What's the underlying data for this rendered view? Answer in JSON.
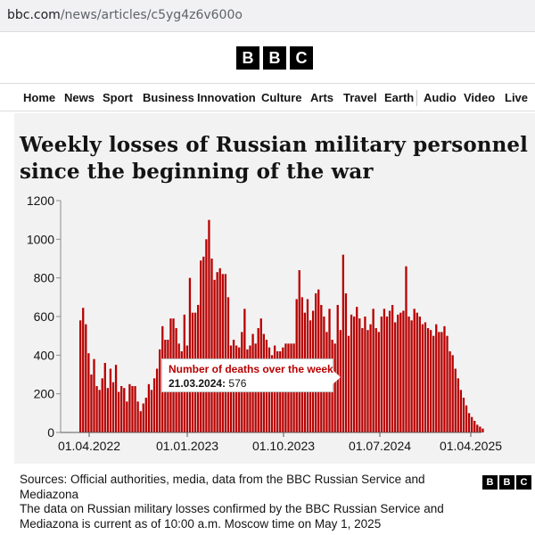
{
  "browser": {
    "url_host": "bbc.com",
    "url_path": "/news/articles/c5yg4z6v600o"
  },
  "header": {
    "logo_letters": [
      "B",
      "B",
      "C"
    ]
  },
  "nav": {
    "items": [
      "Home",
      "News",
      "Sport",
      "Business",
      "Innovation",
      "Culture",
      "Arts",
      "Travel",
      "Earth",
      "Audio",
      "Video",
      "Live"
    ]
  },
  "tooltip": {
    "title": "Number of deaths over the week",
    "date": "21.03.2024:",
    "value": "576"
  },
  "footer": {
    "sources": "Sources: Official authorities, media, data from the BBC Russian Service and Mediazona",
    "note": "The data on Russian military losses confirmed by the BBC Russian Service and Mediazona is current as of 10:00 a.m. Moscow time on May 1, 2025",
    "logo_letters": [
      "B",
      "B",
      "C"
    ]
  },
  "colors": {
    "bar": "#b80000",
    "accent": "#b80000"
  },
  "chart_data": {
    "type": "bar",
    "title": "Weekly losses of Russian military personnel since the beginning of the war",
    "xlabel": "",
    "ylabel": "",
    "ylim": [
      0,
      1200
    ],
    "yticks": [
      "0",
      "200",
      "400",
      "600",
      "800",
      "1000",
      "1200"
    ],
    "xticks": [
      "01.04.2022",
      "01.01.2023",
      "01.10.2023",
      "01.07.2024",
      "01.04.2025"
    ],
    "grid": false,
    "series": [
      {
        "values": [
          580,
          645,
          560,
          410,
          300,
          380,
          240,
          220,
          280,
          360,
          230,
          330,
          260,
          350,
          210,
          240,
          230,
          160,
          250,
          240,
          240,
          160,
          110,
          150,
          180,
          250,
          220,
          280,
          330,
          430,
          550,
          480,
          480,
          590,
          590,
          540,
          460,
          420,
          610,
          450,
          800,
          620,
          620,
          660,
          890,
          910,
          1000,
          1100,
          900,
          790,
          830,
          850,
          820,
          820,
          700,
          450,
          480,
          450,
          440,
          520,
          640,
          430,
          450,
          510,
          460,
          540,
          590,
          510,
          480,
          440,
          400,
          450,
          420,
          420,
          440,
          460,
          460,
          460,
          460,
          690,
          840,
          700,
          620,
          690,
          580,
          630,
          720,
          740,
          660,
          600,
          520,
          640,
          480,
          460,
          660,
          530,
          920,
          720,
          500,
          610,
          600,
          650,
          590,
          540,
          600,
          530,
          560,
          640,
          540,
          520,
          600,
          640,
          600,
          630,
          660,
          570,
          610,
          620,
          630,
          860,
          600,
          580,
          640,
          620,
          600,
          560,
          570,
          540,
          530,
          500,
          560,
          520,
          520,
          550,
          500,
          420,
          400,
          330,
          280,
          220,
          180,
          140,
          100,
          80,
          60,
          40,
          30,
          20
        ]
      }
    ],
    "annotation": {
      "date": "21.03.2024",
      "value": 576
    }
  }
}
